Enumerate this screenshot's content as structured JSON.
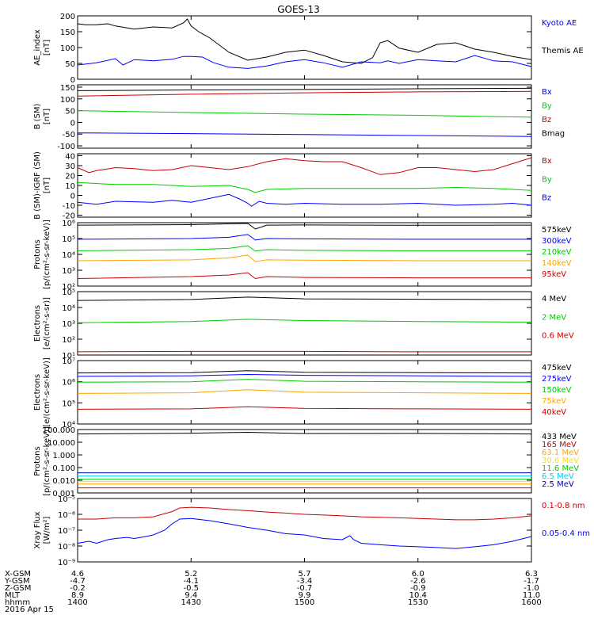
{
  "title": "GOES-13",
  "chart_data": [
    {
      "type": "line",
      "ylabel": "AE_index\n[nT]",
      "yscale": "linear",
      "ylim": [
        0,
        200
      ],
      "yticks": [
        "0",
        "50",
        "100",
        "150",
        "200"
      ],
      "series": [
        {
          "name": "Kyoto AE",
          "color": "#0000ff",
          "x": [
            1400,
            1405,
            1410,
            1412,
            1415,
            1420,
            1425,
            1428,
            1430,
            1433,
            1436,
            1440,
            1445,
            1450,
            1455,
            1500,
            1505,
            1510,
            1515,
            1520,
            1522,
            1525,
            1530,
            1535,
            1540,
            1545,
            1550,
            1555,
            1600
          ],
          "values": [
            45,
            52,
            65,
            45,
            62,
            58,
            63,
            72,
            72,
            70,
            52,
            38,
            34,
            42,
            55,
            62,
            52,
            38,
            55,
            52,
            58,
            50,
            62,
            58,
            55,
            75,
            58,
            55,
            40
          ]
        },
        {
          "name": "Themis AE",
          "color": "#000000",
          "x": [
            1400,
            1402,
            1405,
            1408,
            1410,
            1415,
            1420,
            1425,
            1428,
            1429,
            1430,
            1432,
            1435,
            1440,
            1445,
            1450,
            1455,
            1500,
            1505,
            1510,
            1515,
            1518,
            1520,
            1522,
            1525,
            1530,
            1535,
            1540,
            1545,
            1550,
            1555,
            1600
          ],
          "values": [
            175,
            172,
            172,
            175,
            168,
            158,
            165,
            162,
            178,
            190,
            168,
            150,
            130,
            85,
            60,
            70,
            85,
            92,
            75,
            55,
            50,
            68,
            115,
            122,
            98,
            85,
            110,
            115,
            95,
            85,
            72,
            62
          ]
        }
      ]
    },
    {
      "type": "line",
      "ylabel": "B (SM)\n[nT]",
      "yscale": "linear",
      "ylim": [
        -110,
        160
      ],
      "yticks": [
        "-100",
        "-50",
        "0",
        "50",
        "100",
        "150"
      ],
      "series": [
        {
          "name": "Bx",
          "color": "#0000ff",
          "x": [
            1400,
            1430,
            1500,
            1530,
            1600
          ],
          "values": [
            -45,
            -48,
            -52,
            -56,
            -60
          ]
        },
        {
          "name": "By",
          "color": "#00cc00",
          "x": [
            1400,
            1430,
            1500,
            1530,
            1600
          ],
          "values": [
            50,
            42,
            35,
            30,
            22
          ]
        },
        {
          "name": "Bz",
          "color": "#cc0000",
          "x": [
            1400,
            1430,
            1500,
            1530,
            1600
          ],
          "values": [
            112,
            120,
            126,
            130,
            132
          ]
        },
        {
          "name": "Bmag",
          "color": "#000000",
          "x": [
            1400,
            1430,
            1500,
            1530,
            1600
          ],
          "values": [
            135,
            138,
            140,
            143,
            145
          ]
        }
      ]
    },
    {
      "type": "line",
      "ylabel": "B (SM)-IGRF (SM)\n[nT]",
      "yscale": "linear",
      "ylim": [
        -22,
        42
      ],
      "yticks": [
        "-20",
        "-10",
        "0",
        "10",
        "20",
        "30",
        "40"
      ],
      "series": [
        {
          "name": "Bx",
          "color": "#cc0000",
          "x": [
            1400,
            1403,
            1405,
            1410,
            1415,
            1420,
            1425,
            1430,
            1435,
            1440,
            1445,
            1450,
            1455,
            1500,
            1505,
            1510,
            1515,
            1520,
            1525,
            1530,
            1535,
            1540,
            1545,
            1550,
            1555,
            1600
          ],
          "values": [
            28,
            23,
            25,
            28,
            27,
            25,
            26,
            30,
            28,
            26,
            29,
            34,
            37,
            35,
            34,
            34,
            28,
            21,
            23,
            28,
            28,
            26,
            24,
            26,
            32,
            38
          ]
        },
        {
          "name": "By",
          "color": "#00cc00",
          "x": [
            1400,
            1410,
            1420,
            1430,
            1440,
            1445,
            1447,
            1450,
            1500,
            1510,
            1520,
            1530,
            1540,
            1550,
            1600
          ],
          "values": [
            13,
            11,
            11,
            9,
            10,
            6,
            3,
            6,
            7,
            7,
            7,
            7,
            8,
            7,
            5
          ]
        },
        {
          "name": "Bz",
          "color": "#0000ff",
          "x": [
            1400,
            1405,
            1410,
            1420,
            1425,
            1430,
            1435,
            1440,
            1443,
            1445,
            1446,
            1448,
            1450,
            1455,
            1500,
            1510,
            1520,
            1530,
            1540,
            1550,
            1555,
            1600
          ],
          "values": [
            -7,
            -9,
            -6,
            -7,
            -5,
            -7,
            -3,
            1,
            -4,
            -8,
            -11,
            -6,
            -8,
            -9,
            -8,
            -9,
            -9,
            -8,
            -10,
            -9,
            -8,
            -10
          ]
        }
      ]
    },
    {
      "type": "line",
      "ylabel": "Protons\n[p/(cm²-s-sr-keV)]",
      "yscale": "log",
      "ylim": [
        100.0,
        1000000.0
      ],
      "yticks": [
        "10²",
        "10³",
        "10⁴",
        "10⁵",
        "10⁶"
      ],
      "series": [
        {
          "name": "575keV",
          "color": "#000000",
          "x": [
            1400,
            1430,
            1440,
            1445,
            1447,
            1450,
            1500,
            1530,
            1600
          ],
          "values": [
            700000,
            750000,
            850000,
            900000,
            400000,
            700000,
            720000,
            680000,
            700000
          ]
        },
        {
          "name": "300keV",
          "color": "#0000ff",
          "x": [
            1400,
            1430,
            1440,
            1445,
            1447,
            1450,
            1500,
            1530,
            1600
          ],
          "values": [
            90000,
            100000,
            120000,
            180000,
            80000,
            100000,
            95000,
            90000,
            90000
          ]
        },
        {
          "name": "210keV",
          "color": "#00cc00",
          "x": [
            1400,
            1430,
            1440,
            1445,
            1447,
            1450,
            1500,
            1530,
            1600
          ],
          "values": [
            17000,
            20000,
            24000,
            35000,
            16000,
            20000,
            18000,
            17000,
            17000
          ]
        },
        {
          "name": "140keV",
          "color": "#ffa500",
          "x": [
            1400,
            1430,
            1440,
            1445,
            1447,
            1450,
            1500,
            1530,
            1600
          ],
          "values": [
            4000,
            4500,
            6000,
            9000,
            3500,
            4500,
            4300,
            4000,
            4000
          ]
        },
        {
          "name": "95keV",
          "color": "#cc0000",
          "x": [
            1400,
            1430,
            1440,
            1445,
            1447,
            1450,
            1500,
            1530,
            1600
          ],
          "values": [
            300,
            400,
            500,
            700,
            300,
            400,
            350,
            330,
            330
          ]
        }
      ]
    },
    {
      "type": "line",
      "ylabel": "Electrons\n[e/(cm²-s-sr)]",
      "yscale": "log",
      "ylim": [
        10.0,
        100000.0
      ],
      "yticks": [
        "10¹",
        "10²",
        "10³",
        "10⁴",
        "10⁵"
      ],
      "series": [
        {
          "name": "4 MeV",
          "color": "#000000",
          "x": [
            1400,
            1430,
            1445,
            1500,
            1530,
            1600
          ],
          "values": [
            28000,
            32000,
            45000,
            35000,
            33000,
            32000
          ]
        },
        {
          "name": "2 MeV",
          "color": "#00cc00",
          "x": [
            1400,
            1430,
            1445,
            1500,
            1530,
            1600
          ],
          "values": [
            1100,
            1300,
            1800,
            1500,
            1300,
            1200
          ]
        },
        {
          "name": "0.6 MeV",
          "color": "#cc0000",
          "x": [
            1400,
            1430,
            1500,
            1530,
            1600
          ],
          "values": [
            16,
            17,
            17,
            16,
            16
          ]
        }
      ]
    },
    {
      "type": "line",
      "ylabel": "Electrons\n[e/(cm²-s-sr-keV)]",
      "yscale": "log",
      "ylim": [
        10000.0,
        10000000.0
      ],
      "yticks": [
        "10⁴",
        "10⁵",
        "10⁶",
        "10⁷"
      ],
      "series": [
        {
          "name": "475keV",
          "color": "#000000",
          "x": [
            1400,
            1430,
            1445,
            1500,
            1530,
            1600
          ],
          "values": [
            2600000,
            2700000,
            3300000,
            2800000,
            2700000,
            2600000
          ]
        },
        {
          "name": "275keV",
          "color": "#0000ff",
          "x": [
            1400,
            1430,
            1445,
            1500,
            1530,
            1600
          ],
          "values": [
            1800000,
            1900000,
            2200000,
            2000000,
            1900000,
            1800000
          ]
        },
        {
          "name": "150keV",
          "color": "#00cc00",
          "x": [
            1400,
            1430,
            1445,
            1500,
            1530,
            1600
          ],
          "values": [
            950000,
            1000000,
            1300000,
            1050000,
            1000000,
            950000
          ]
        },
        {
          "name": "75keV",
          "color": "#ffa500",
          "x": [
            1400,
            1430,
            1445,
            1500,
            1530,
            1600
          ],
          "values": [
            280000,
            300000,
            420000,
            320000,
            300000,
            280000
          ]
        },
        {
          "name": "40keV",
          "color": "#cc0000",
          "x": [
            1400,
            1430,
            1445,
            1500,
            1530,
            1600
          ],
          "values": [
            50000,
            52000,
            65000,
            55000,
            52000,
            50000
          ]
        }
      ]
    },
    {
      "type": "line",
      "ylabel": "Protons\n[p/(cm²-s-sr-keV)]",
      "yscale": "log",
      "ylim": [
        0.001,
        1000
      ],
      "yticks": [
        "0.001",
        "0.010",
        "0.100",
        "1.000",
        "10.000",
        "100.000"
      ],
      "series": [
        {
          "name": "433 MeV",
          "color": "#000000",
          "x": [
            1400,
            1430,
            1445,
            1500,
            1530,
            1600
          ],
          "values": [
            380,
            450,
            550,
            420,
            430,
            380
          ]
        },
        {
          "name": "165 MeV",
          "color": "#cc0000",
          "x": [
            1400,
            1500,
            1600
          ],
          "values": [
            0.003,
            0.003,
            0.003
          ]
        },
        {
          "name": "63.1 MeV",
          "color": "#ffa500",
          "x": [
            1400,
            1500,
            1600
          ],
          "values": [
            0.007,
            0.007,
            0.007
          ]
        },
        {
          "name": "30.6 MeV",
          "color": "#ffdd00",
          "x": [
            1400,
            1500,
            1600
          ],
          "values": [
            0.012,
            0.012,
            0.012
          ]
        },
        {
          "name": "11.6 MeV",
          "color": "#00cc00",
          "x": [
            1400,
            1500,
            1600
          ],
          "values": [
            0.02,
            0.02,
            0.02
          ]
        },
        {
          "name": "6.5 MeV",
          "color": "#00ccff",
          "x": [
            1400,
            1500,
            1600
          ],
          "values": [
            0.04,
            0.04,
            0.04
          ]
        },
        {
          "name": "2.5 MeV",
          "color": "#0000aa",
          "x": [
            1400,
            1500,
            1600
          ],
          "values": [
            0.08,
            0.08,
            0.08
          ]
        }
      ]
    },
    {
      "type": "line",
      "ylabel": "Xray Flux\n[W/m²]",
      "yscale": "log",
      "ylim": [
        1e-09,
        1e-05
      ],
      "yticks": [
        "10⁻⁹",
        "10⁻⁸",
        "10⁻⁷",
        "10⁻⁶",
        "10⁻⁵"
      ],
      "series": [
        {
          "name": "0.1-0.8 nm",
          "color": "#cc0000",
          "x": [
            1400,
            1405,
            1410,
            1415,
            1420,
            1425,
            1427,
            1430,
            1435,
            1440,
            1445,
            1450,
            1455,
            1500,
            1505,
            1510,
            1515,
            1520,
            1525,
            1530,
            1535,
            1540,
            1545,
            1550,
            1555,
            1600
          ],
          "values": [
            5e-07,
            5e-07,
            6e-07,
            6e-07,
            7e-07,
            1.5e-06,
            2.5e-06,
            2.8e-06,
            2.5e-06,
            2e-06,
            1.7e-06,
            1.4e-06,
            1.2e-06,
            1e-06,
            9e-07,
            8e-07,
            7e-07,
            6.5e-07,
            6e-07,
            5.5e-07,
            5e-07,
            4.5e-07,
            4.5e-07,
            5e-07,
            6e-07,
            8e-07
          ]
        },
        {
          "name": "0.05-0.4 nm",
          "color": "#0000ff",
          "x": [
            1400,
            1403,
            1405,
            1408,
            1410,
            1413,
            1415,
            1418,
            1420,
            1423,
            1425,
            1427,
            1430,
            1435,
            1440,
            1445,
            1450,
            1455,
            1500,
            1505,
            1510,
            1512,
            1513,
            1515,
            1520,
            1525,
            1530,
            1535,
            1540,
            1545,
            1550,
            1555,
            1600
          ],
          "values": [
            1.5e-08,
            2e-08,
            1.5e-08,
            2.5e-08,
            3e-08,
            3.5e-08,
            3e-08,
            4e-08,
            5e-08,
            1e-07,
            2.5e-07,
            5e-07,
            5.5e-07,
            4e-07,
            2.5e-07,
            1.5e-07,
            1e-07,
            6e-08,
            5e-08,
            3e-08,
            2.5e-08,
            4.5e-08,
            2.5e-08,
            1.5e-08,
            1.2e-08,
            1e-08,
            9e-09,
            8e-09,
            7e-09,
            9e-09,
            1.2e-08,
            2e-08,
            4e-08
          ]
        }
      ]
    }
  ],
  "x_axis": {
    "ticks": [
      1400,
      1430,
      1500,
      1530,
      1600
    ],
    "row_labels": [
      "X-GSM",
      "Y-GSM",
      "Z-GSM",
      "MLT",
      "hhmm"
    ],
    "rows": [
      [
        "4.6",
        "5.2",
        "5.7",
        "6.0",
        "6.3"
      ],
      [
        "-4.7",
        "-4.1",
        "-3.4",
        "-2.6",
        "-1.7"
      ],
      [
        "-0.2",
        "-0.5",
        "-0.7",
        "-0.9",
        "-1.0"
      ],
      [
        "8.9",
        "9.4",
        "9.9",
        "10.4",
        "11.0"
      ],
      [
        "1400",
        "1430",
        "1500",
        "1530",
        "1600"
      ]
    ],
    "date": "2016 Apr 15"
  }
}
